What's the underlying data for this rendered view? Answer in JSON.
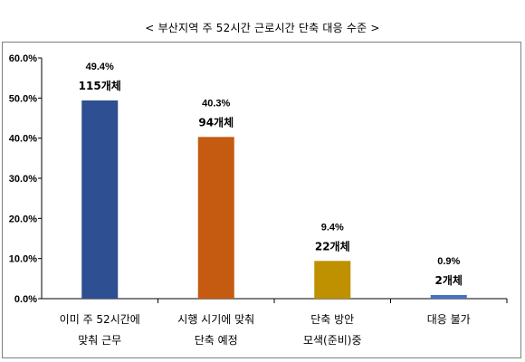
{
  "chart_data": {
    "type": "bar",
    "title": "< 부산지역 주 52시간 근로시간 단축 대응 수준 >",
    "categories": [
      [
        "이미 주 52시간에",
        "맞춰 근무"
      ],
      [
        "시행 시기에 맞춰",
        "단축 예정"
      ],
      [
        "단축 방안",
        "모색(준비)중"
      ],
      [
        "대응 불가"
      ]
    ],
    "values": [
      49.4,
      40.3,
      9.4,
      0.9
    ],
    "value_labels": [
      "49.4%",
      "40.3%",
      "9.4%",
      "0.9%"
    ],
    "count_labels": [
      "115개체",
      "94개체",
      "22개체",
      "2개체"
    ],
    "bar_colors": [
      "#2e4f91",
      "#c55a11",
      "#bf9000",
      "#4472c4"
    ],
    "ylim": [
      0,
      60
    ],
    "yticks": [
      "0.0%",
      "10.0%",
      "20.0%",
      "30.0%",
      "40.0%",
      "50.0%",
      "60.0%"
    ],
    "xlabel": "",
    "ylabel": "",
    "grid": false,
    "legend": "none"
  }
}
